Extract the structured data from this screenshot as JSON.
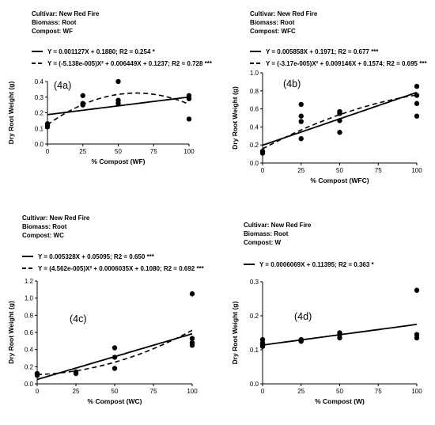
{
  "chart_data": [
    {
      "type": "scatter",
      "meta": [
        "Cultivar: New Red Fire",
        "Biomass: Root",
        "Compost: WF"
      ],
      "panel_label": "(4a)",
      "xlabel": "% Compost (WF)",
      "ylabel": "Dry Root Weight (g)",
      "xlim": [
        0,
        100
      ],
      "ylim": [
        0,
        0.4
      ],
      "xticks": [
        0,
        25,
        50,
        75,
        100
      ],
      "yticks": [
        0.0,
        0.1,
        0.2,
        0.3,
        0.4
      ],
      "points": [
        [
          0,
          0.11
        ],
        [
          0,
          0.12
        ],
        [
          0,
          0.13
        ],
        [
          25,
          0.25
        ],
        [
          25,
          0.26
        ],
        [
          25,
          0.31
        ],
        [
          50,
          0.26
        ],
        [
          50,
          0.28
        ],
        [
          50,
          0.4
        ],
        [
          100,
          0.16
        ],
        [
          100,
          0.29
        ],
        [
          100,
          0.31
        ]
      ],
      "fits": [
        {
          "style": "solid",
          "label": "Y = 0.001127X + 0.1880; R2 = 0.254 *",
          "coef": [
            0.188,
            0.001127,
            0
          ]
        },
        {
          "style": "dashed",
          "label": "Y = (-5.138e-005)X² + 0.006449X + 0.1237; R2 = 0.728 ***",
          "coef": [
            0.1237,
            0.006449,
            -5.138e-05
          ]
        }
      ]
    },
    {
      "type": "scatter",
      "meta": [
        "Cultivar: New Red Fire",
        "Biomass: Root",
        "Compost: WFC"
      ],
      "panel_label": "(4b)",
      "xlabel": "% Compost (WFC)",
      "ylabel": "Dry Root Weight (g)",
      "xlim": [
        0,
        100
      ],
      "ylim": [
        0,
        1.0
      ],
      "xticks": [
        0,
        25,
        50,
        75,
        100
      ],
      "yticks": [
        0.0,
        0.2,
        0.4,
        0.6,
        0.8,
        1.0
      ],
      "points": [
        [
          0,
          0.11
        ],
        [
          0,
          0.13
        ],
        [
          25,
          0.27
        ],
        [
          25,
          0.46
        ],
        [
          25,
          0.52
        ],
        [
          25,
          0.65
        ],
        [
          50,
          0.34
        ],
        [
          50,
          0.47
        ],
        [
          50,
          0.55
        ],
        [
          50,
          0.57
        ],
        [
          100,
          0.52
        ],
        [
          100,
          0.66
        ],
        [
          100,
          0.75
        ],
        [
          100,
          0.85
        ]
      ],
      "fits": [
        {
          "style": "solid",
          "label": "Y = 0.005858X + 0.1971; R2 = 0.677 ***",
          "coef": [
            0.1971,
            0.005858,
            0
          ]
        },
        {
          "style": "dashed",
          "label": "Y = (-3.17e-005)X² + 0.009146X + 0.1574; R2 = 0.695 ***",
          "coef": [
            0.1574,
            0.009146,
            -3.17e-05
          ]
        }
      ]
    },
    {
      "type": "scatter",
      "meta": [
        "Cultivar: New Red Fire",
        "Biomass: Root",
        "Compost: WC"
      ],
      "panel_label": "(4c)",
      "xlabel": "% Compost (WC)",
      "ylabel": "Dry Root Weight (g)",
      "xlim": [
        0,
        100
      ],
      "ylim": [
        0,
        1.2
      ],
      "xticks": [
        0,
        25,
        50,
        75,
        100
      ],
      "yticks": [
        0.0,
        0.2,
        0.4,
        0.6,
        0.8,
        1.0,
        1.2
      ],
      "points": [
        [
          0,
          0.1
        ],
        [
          0,
          0.12
        ],
        [
          25,
          0.12
        ],
        [
          25,
          0.14
        ],
        [
          50,
          0.18
        ],
        [
          50,
          0.31
        ],
        [
          50,
          0.42
        ],
        [
          100,
          0.45
        ],
        [
          100,
          0.48
        ],
        [
          100,
          0.53
        ],
        [
          100,
          1.05
        ]
      ],
      "fits": [
        {
          "style": "solid",
          "label": "Y = 0.005328X + 0.05095; R2 = 0.650 ***",
          "coef": [
            0.05095,
            0.005328,
            0
          ]
        },
        {
          "style": "dashed",
          "label": "Y = (4.562e-005)X² + 0.0006035X + 0.1080; R2 = 0.692 ***",
          "coef": [
            0.108,
            0.0006035,
            4.562e-05
          ]
        }
      ]
    },
    {
      "type": "scatter",
      "meta": [
        "Cultivar: New Red Fire",
        "Biomass: Root",
        "Compost: W"
      ],
      "panel_label": "(4d)",
      "xlabel": "% Compost (W)",
      "ylabel": "Dry Root Weight (g)",
      "xlim": [
        0,
        100
      ],
      "ylim": [
        0,
        0.3
      ],
      "xticks": [
        0,
        25,
        50,
        75,
        100
      ],
      "yticks": [
        0.0,
        0.1,
        0.2,
        0.3
      ],
      "points": [
        [
          0,
          0.11
        ],
        [
          0,
          0.115
        ],
        [
          0,
          0.12
        ],
        [
          0,
          0.13
        ],
        [
          25,
          0.125
        ],
        [
          25,
          0.13
        ],
        [
          50,
          0.135
        ],
        [
          50,
          0.145
        ],
        [
          50,
          0.15
        ],
        [
          100,
          0.135
        ],
        [
          100,
          0.145
        ],
        [
          100,
          0.275
        ]
      ],
      "fits": [
        {
          "style": "solid",
          "label": "Y = 0.0006069X + 0.11395; R2 = 0.363 *",
          "coef": [
            0.11395,
            0.0006069,
            0
          ]
        }
      ]
    }
  ]
}
